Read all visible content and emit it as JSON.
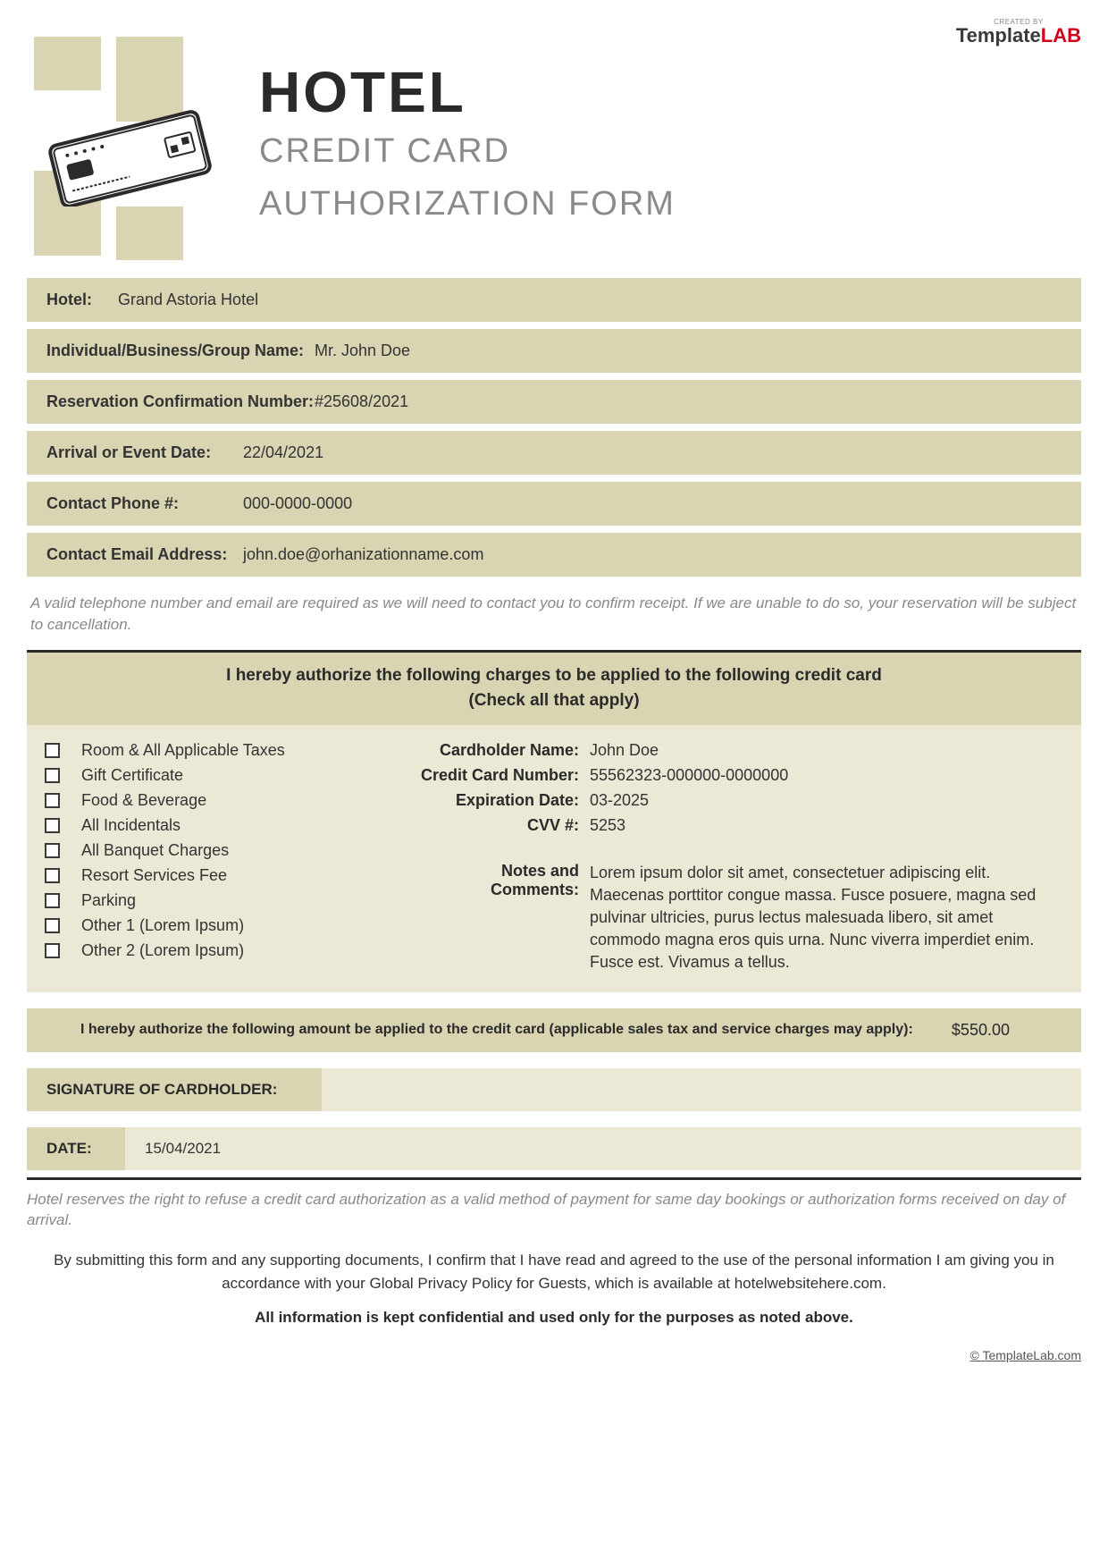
{
  "brand": {
    "top": "CREATED BY",
    "t1": "Template",
    "t2": "LAB"
  },
  "title": {
    "main": "HOTEL",
    "sub1": "CREDIT CARD",
    "sub2": "AUTHORIZATION FORM"
  },
  "fields": {
    "hotel": {
      "label": "Hotel:",
      "value": "Grand Astoria Hotel"
    },
    "name": {
      "label": "Individual/Business/Group Name:",
      "value": "Mr. John Doe"
    },
    "conf": {
      "label": "Reservation Confirmation Number:",
      "value": "#25608/2021"
    },
    "arrival": {
      "label": "Arrival or Event Date:",
      "value": "22/04/2021"
    },
    "phone": {
      "label": "Contact Phone #:",
      "value": "000-0000-0000"
    },
    "email": {
      "label": "Contact Email Address:",
      "value": "john.doe@orhanizationname.com"
    }
  },
  "note1": "A valid telephone number and email are required as we will need to contact you to confirm receipt. If we are unable to do so, your reservation will be subject to cancellation.",
  "auth": {
    "header1": "I hereby authorize the following charges to be applied to the following credit card",
    "header2": "(Check all that apply)",
    "items": [
      "Room & All Applicable Taxes",
      "Gift Certificate",
      "Food & Beverage",
      "All Incidentals",
      "All Banquet Charges",
      "Resort Services Fee",
      "Parking",
      "Other 1 (Lorem Ipsum)",
      "Other 2 (Lorem Ipsum)"
    ],
    "card": {
      "name": {
        "label": "Cardholder Name:",
        "value": "John Doe"
      },
      "num": {
        "label": "Credit Card Number:",
        "value": "55562323-000000-0000000"
      },
      "exp": {
        "label": "Expiration Date:",
        "value": "03-2025"
      },
      "cvv": {
        "label": "CVV #:",
        "value": "5253"
      },
      "notes": {
        "label": "Notes and Comments:",
        "value": "Lorem ipsum dolor sit amet, consectetuer adipiscing elit. Maecenas porttitor congue massa. Fusce posuere, magna sed pulvinar ultricies, purus lectus malesuada libero, sit amet commodo magna eros quis urna. Nunc viverra imperdiet enim. Fusce est. Vivamus a tellus."
      }
    },
    "amountText": "I hereby authorize the following amount be applied to the credit card (applicable sales tax and service charges may apply):",
    "amountValue": "$550.00"
  },
  "sig": {
    "label": "SIGNATURE OF CARDHOLDER:"
  },
  "date": {
    "label": "DATE:",
    "value": "15/04/2021"
  },
  "footer": {
    "note": "Hotel reserves the right to refuse a credit card authorization as a valid method of payment for same day bookings or authorization forms received on day of arrival.",
    "text": "By submitting this form and any supporting documents, I confirm that I have read and agreed to the use of the personal information I am giving you in accordance with your Global Privacy Policy for Guests, which is available at hotelwebsitehere.com.",
    "bold": "All information is kept confidential and used only for the purposes as noted above.",
    "copy": "© TemplateLab.com"
  },
  "colors": {
    "beige": "#d9d4b2",
    "cream": "#ebe8d5",
    "dark": "#2a2a2a",
    "gray": "#8a8a8a"
  }
}
